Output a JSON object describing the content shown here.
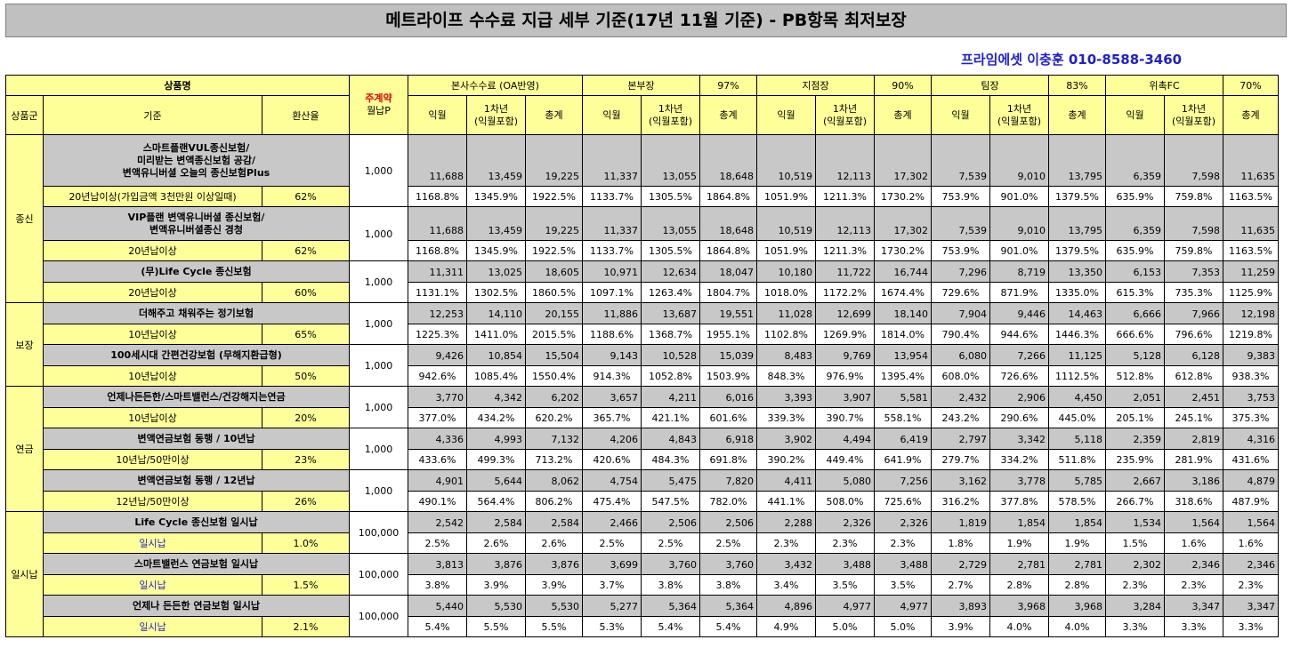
{
  "title": "메트라이프 수수료 지급 세부 기준(17년 11월 기준) - PB항목 최저보장",
  "contact": "프라임에셋 이충훈 010-8588-3460",
  "header": {
    "product_name": "상품명",
    "contract": "주계약",
    "monthly": "월납P",
    "group": "상품군",
    "criteria": "기준",
    "ratio": "환산율",
    "sections": [
      {
        "name": "본사수수료 (OA반영)",
        "pct": ""
      },
      {
        "name": "본부장",
        "pct": "97%"
      },
      {
        "name": "지점장",
        "pct": "90%"
      },
      {
        "name": "팀장",
        "pct": "83%"
      },
      {
        "name": "위촉FC",
        "pct": "70%"
      }
    ],
    "sub": [
      "익월",
      "1차년\n(익월포함)",
      "총계"
    ]
  },
  "groups": [
    {
      "name": "종신",
      "products": [
        {
          "name": "스마트플랜VUL종신보험/\n미리받는 변액종신보험 공감/\n변액유니버셜 오늘의 종신보험Plus",
          "criteria": "20년납이상(가입금액 3천만원 이상일때)",
          "ratio": "62%",
          "premium": "1,000",
          "values": [
            "11,688",
            "13,459",
            "19,225",
            "11,337",
            "13,055",
            "18,648",
            "10,519",
            "12,113",
            "17,302",
            "7,539",
            "9,010",
            "13,795",
            "6,359",
            "7,598",
            "11,635"
          ],
          "pcts": [
            "1168.8%",
            "1345.9%",
            "1922.5%",
            "1133.7%",
            "1305.5%",
            "1864.8%",
            "1051.9%",
            "1211.3%",
            "1730.2%",
            "753.9%",
            "901.0%",
            "1379.5%",
            "635.9%",
            "759.8%",
            "1163.5%"
          ]
        },
        {
          "name": "VIP플랜 변액유니버셜 종신보험/\n변액유니버셜종신 경청",
          "criteria": "20년납이상",
          "ratio": "62%",
          "premium": "1,000",
          "values": [
            "11,688",
            "13,459",
            "19,225",
            "11,337",
            "13,055",
            "18,648",
            "10,519",
            "12,113",
            "17,302",
            "7,539",
            "9,010",
            "13,795",
            "6,359",
            "7,598",
            "11,635"
          ],
          "pcts": [
            "1168.8%",
            "1345.9%",
            "1922.5%",
            "1133.7%",
            "1305.5%",
            "1864.8%",
            "1051.9%",
            "1211.3%",
            "1730.2%",
            "753.9%",
            "901.0%",
            "1379.5%",
            "635.9%",
            "759.8%",
            "1163.5%"
          ]
        },
        {
          "name": "(무)Life Cycle 종신보험",
          "criteria": "20년납이상",
          "ratio": "60%",
          "premium": "1,000",
          "values": [
            "11,311",
            "13,025",
            "18,605",
            "10,971",
            "12,634",
            "18,047",
            "10,180",
            "11,722",
            "16,744",
            "7,296",
            "8,719",
            "13,350",
            "6,153",
            "7,353",
            "11,259"
          ],
          "pcts": [
            "1131.1%",
            "1302.5%",
            "1860.5%",
            "1097.1%",
            "1263.4%",
            "1804.7%",
            "1018.0%",
            "1172.2%",
            "1674.4%",
            "729.6%",
            "871.9%",
            "1335.0%",
            "615.3%",
            "735.3%",
            "1125.9%"
          ]
        }
      ]
    },
    {
      "name": "보장",
      "products": [
        {
          "name": "더해주고 채워주는 정기보험",
          "criteria": "10년납이상",
          "ratio": "65%",
          "premium": "1,000",
          "values": [
            "12,253",
            "14,110",
            "20,155",
            "11,886",
            "13,687",
            "19,551",
            "11,028",
            "12,699",
            "18,140",
            "7,904",
            "9,446",
            "14,463",
            "6,666",
            "7,966",
            "12,198"
          ],
          "pcts": [
            "1225.3%",
            "1411.0%",
            "2015.5%",
            "1188.6%",
            "1368.7%",
            "1955.1%",
            "1102.8%",
            "1269.9%",
            "1814.0%",
            "790.4%",
            "944.6%",
            "1446.3%",
            "666.6%",
            "796.6%",
            "1219.8%"
          ]
        },
        {
          "name": "100세시대 간편건강보험 (무해지환급형)",
          "criteria": "10년납이상",
          "ratio": "50%",
          "premium": "1,000",
          "values": [
            "9,426",
            "10,854",
            "15,504",
            "9,143",
            "10,528",
            "15,039",
            "8,483",
            "9,769",
            "13,954",
            "6,080",
            "7,266",
            "11,125",
            "5,128",
            "6,128",
            "9,383"
          ],
          "pcts": [
            "942.6%",
            "1085.4%",
            "1550.4%",
            "914.3%",
            "1052.8%",
            "1503.9%",
            "848.3%",
            "976.9%",
            "1395.4%",
            "608.0%",
            "726.6%",
            "1112.5%",
            "512.8%",
            "612.8%",
            "938.3%"
          ]
        }
      ]
    },
    {
      "name": "연금",
      "products": [
        {
          "name": "언제나든든한/스마트밸런스/건강해지는연금",
          "criteria": "10년납이상",
          "ratio": "20%",
          "premium": "1,000",
          "values": [
            "3,770",
            "4,342",
            "6,202",
            "3,657",
            "4,211",
            "6,016",
            "3,393",
            "3,907",
            "5,581",
            "2,432",
            "2,906",
            "4,450",
            "2,051",
            "2,451",
            "3,753"
          ],
          "pcts": [
            "377.0%",
            "434.2%",
            "620.2%",
            "365.7%",
            "421.1%",
            "601.6%",
            "339.3%",
            "390.7%",
            "558.1%",
            "243.2%",
            "290.6%",
            "445.0%",
            "205.1%",
            "245.1%",
            "375.3%"
          ]
        },
        {
          "name": "변액연금보험 동행 / 10년납",
          "criteria": "10년납/50만이상",
          "ratio": "23%",
          "premium": "1,000",
          "values": [
            "4,336",
            "4,993",
            "7,132",
            "4,206",
            "4,843",
            "6,918",
            "3,902",
            "4,494",
            "6,419",
            "2,797",
            "3,342",
            "5,118",
            "2,359",
            "2,819",
            "4,316"
          ],
          "pcts": [
            "433.6%",
            "499.3%",
            "713.2%",
            "420.6%",
            "484.3%",
            "691.8%",
            "390.2%",
            "449.4%",
            "641.9%",
            "279.7%",
            "334.2%",
            "511.8%",
            "235.9%",
            "281.9%",
            "431.6%"
          ]
        },
        {
          "name": "변액연금보험 동행 / 12년납",
          "criteria": "12년납/50만이상",
          "ratio": "26%",
          "premium": "1,000",
          "values": [
            "4,901",
            "5,644",
            "8,062",
            "4,754",
            "5,475",
            "7,820",
            "4,411",
            "5,080",
            "7,256",
            "3,162",
            "3,778",
            "5,785",
            "2,667",
            "3,186",
            "4,879"
          ],
          "pcts": [
            "490.1%",
            "564.4%",
            "806.2%",
            "475.4%",
            "547.5%",
            "782.0%",
            "441.1%",
            "508.0%",
            "725.6%",
            "316.2%",
            "377.8%",
            "578.5%",
            "266.7%",
            "318.6%",
            "487.9%"
          ]
        }
      ]
    },
    {
      "name": "일시납",
      "products": [
        {
          "name": "Life Cycle 종신보험 일시납",
          "criteria": "일시납",
          "ratio": "1.0%",
          "premium": "100,000",
          "blue": true,
          "values": [
            "2,542",
            "2,584",
            "2,584",
            "2,466",
            "2,506",
            "2,506",
            "2,288",
            "2,326",
            "2,326",
            "1,819",
            "1,854",
            "1,854",
            "1,534",
            "1,564",
            "1,564"
          ],
          "pcts": [
            "2.5%",
            "2.6%",
            "2.6%",
            "2.5%",
            "2.5%",
            "2.5%",
            "2.3%",
            "2.3%",
            "2.3%",
            "1.8%",
            "1.9%",
            "1.9%",
            "1.5%",
            "1.6%",
            "1.6%"
          ]
        },
        {
          "name": "스마트밸런스 연금보험 일시납",
          "criteria": "일시납",
          "ratio": "1.5%",
          "premium": "100,000",
          "blue": true,
          "values": [
            "3,813",
            "3,876",
            "3,876",
            "3,699",
            "3,760",
            "3,760",
            "3,432",
            "3,488",
            "3,488",
            "2,729",
            "2,781",
            "2,781",
            "2,302",
            "2,346",
            "2,346"
          ],
          "pcts": [
            "3.8%",
            "3.9%",
            "3.9%",
            "3.7%",
            "3.8%",
            "3.8%",
            "3.4%",
            "3.5%",
            "3.5%",
            "2.7%",
            "2.8%",
            "2.8%",
            "2.3%",
            "2.3%",
            "2.3%"
          ]
        },
        {
          "name": "언제나 든든한 연금보험 일시납",
          "criteria": "일시납",
          "ratio": "2.1%",
          "premium": "100,000",
          "blue": true,
          "values": [
            "5,440",
            "5,530",
            "5,530",
            "5,277",
            "5,364",
            "5,364",
            "4,896",
            "4,977",
            "4,977",
            "3,893",
            "3,968",
            "3,968",
            "3,284",
            "3,347",
            "3,347"
          ],
          "pcts": [
            "5.4%",
            "5.5%",
            "5.5%",
            "5.3%",
            "5.4%",
            "5.4%",
            "4.9%",
            "5.0%",
            "5.0%",
            "3.9%",
            "4.0%",
            "4.0%",
            "3.3%",
            "3.3%",
            "3.3%"
          ]
        }
      ]
    }
  ]
}
